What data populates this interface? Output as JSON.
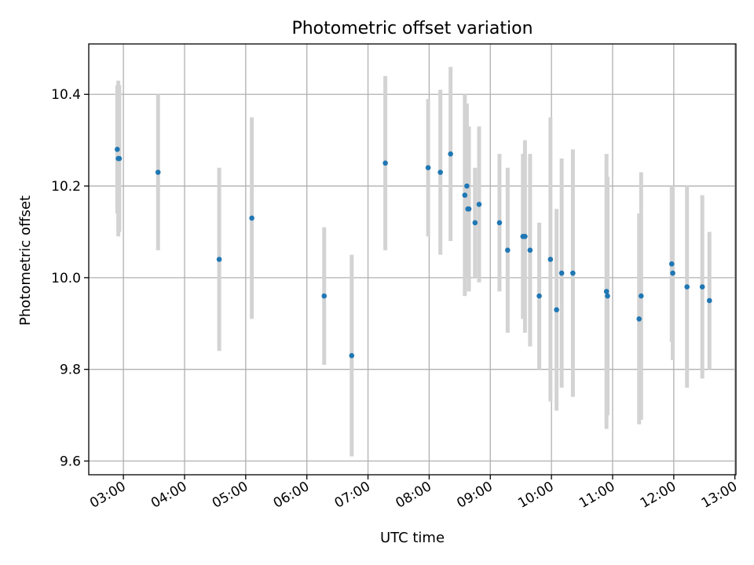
{
  "chart_data": {
    "type": "scatter",
    "title": "Photometric offset variation",
    "xlabel": "UTC time",
    "ylabel": "Photometric offset",
    "xlim": [
      "02:26",
      "13:01"
    ],
    "ylim": [
      9.57,
      10.51
    ],
    "x_ticks": [
      "03:00",
      "04:00",
      "05:00",
      "06:00",
      "07:00",
      "08:00",
      "09:00",
      "10:00",
      "11:00",
      "12:00",
      "13:00"
    ],
    "y_ticks": [
      "9.6",
      "9.8",
      "10.0",
      "10.2",
      "10.4"
    ],
    "grid": true,
    "colors": {
      "marker": "#1f77b4",
      "errorbar": "#d3d3d3",
      "grid": "#b0b0b0"
    },
    "points": [
      {
        "x": "02:54",
        "y": 10.28,
        "err": 0.14
      },
      {
        "x": "02:55",
        "y": 10.26,
        "err": 0.17
      },
      {
        "x": "02:56",
        "y": 10.26,
        "err": 0.16
      },
      {
        "x": "03:34",
        "y": 10.23,
        "err": 0.17
      },
      {
        "x": "04:34",
        "y": 10.04,
        "err": 0.2
      },
      {
        "x": "05:06",
        "y": 10.13,
        "err": 0.22
      },
      {
        "x": "06:17",
        "y": 9.96,
        "err": 0.15
      },
      {
        "x": "06:44",
        "y": 9.83,
        "err": 0.22
      },
      {
        "x": "07:17",
        "y": 10.25,
        "err": 0.19
      },
      {
        "x": "07:59",
        "y": 10.24,
        "err": 0.15
      },
      {
        "x": "08:11",
        "y": 10.23,
        "err": 0.18
      },
      {
        "x": "08:21",
        "y": 10.27,
        "err": 0.19
      },
      {
        "x": "08:35",
        "y": 10.18,
        "err": 0.22
      },
      {
        "x": "08:37",
        "y": 10.2,
        "err": 0.18
      },
      {
        "x": "08:38",
        "y": 10.15,
        "err": 0.15
      },
      {
        "x": "08:39",
        "y": 10.15,
        "err": 0.18
      },
      {
        "x": "08:45",
        "y": 10.12,
        "err": 0.12
      },
      {
        "x": "08:49",
        "y": 10.16,
        "err": 0.17
      },
      {
        "x": "09:09",
        "y": 10.12,
        "err": 0.15
      },
      {
        "x": "09:17",
        "y": 10.06,
        "err": 0.18
      },
      {
        "x": "09:32",
        "y": 10.09,
        "err": 0.18
      },
      {
        "x": "09:34",
        "y": 10.09,
        "err": 0.21
      },
      {
        "x": "09:39",
        "y": 10.06,
        "err": 0.21
      },
      {
        "x": "09:48",
        "y": 9.96,
        "err": 0.16
      },
      {
        "x": "09:59",
        "y": 10.04,
        "err": 0.31
      },
      {
        "x": "10:05",
        "y": 9.93,
        "err": 0.22
      },
      {
        "x": "10:10",
        "y": 10.01,
        "err": 0.25
      },
      {
        "x": "10:21",
        "y": 10.01,
        "err": 0.27
      },
      {
        "x": "10:54",
        "y": 9.97,
        "err": 0.3
      },
      {
        "x": "10:55",
        "y": 9.96,
        "err": 0.26
      },
      {
        "x": "11:26",
        "y": 9.91,
        "err": 0.23
      },
      {
        "x": "11:28",
        "y": 9.96,
        "err": 0.27
      },
      {
        "x": "11:58",
        "y": 10.03,
        "err": 0.17
      },
      {
        "x": "11:59",
        "y": 10.01,
        "err": 0.19
      },
      {
        "x": "12:13",
        "y": 9.98,
        "err": 0.22
      },
      {
        "x": "12:28",
        "y": 9.98,
        "err": 0.2
      },
      {
        "x": "12:35",
        "y": 9.95,
        "err": 0.15
      }
    ]
  }
}
